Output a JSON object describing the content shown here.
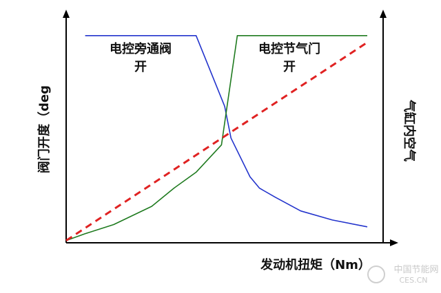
{
  "chart_data": {
    "type": "line",
    "title": "",
    "xlabel": "发动机扭矩（Nm）",
    "ylabel_left": "阀门开度（deg",
    "ylabel_right": "气缸内空气",
    "annotations": [
      {
        "lines": [
          "电控旁通阀",
          "开"
        ]
      },
      {
        "lines": [
          "电控节气门",
          "开"
        ]
      }
    ],
    "xlim": [
      0,
      100
    ],
    "ylim": [
      0,
      100
    ],
    "grid": false,
    "legend": "none",
    "series": [
      {
        "color": "#2233cc",
        "style": "solid",
        "x": [
          6,
          41,
          50,
          52,
          58,
          61,
          66,
          74,
          84,
          95
        ],
        "y": [
          91,
          91,
          60,
          46,
          29,
          24,
          20,
          14,
          10,
          7
        ]
      },
      {
        "color": "#1e7a1e",
        "style": "solid",
        "x": [
          0,
          6,
          15,
          27,
          34,
          41,
          49,
          54,
          95
        ],
        "y": [
          1,
          4,
          8,
          16,
          24,
          31,
          43,
          91,
          91
        ]
      },
      {
        "color": "#e02222",
        "style": "dashed",
        "x": [
          0,
          95
        ],
        "y": [
          1,
          88
        ]
      }
    ]
  },
  "watermark": {
    "line1": "中国节能网",
    "line2": "CES.CN"
  }
}
